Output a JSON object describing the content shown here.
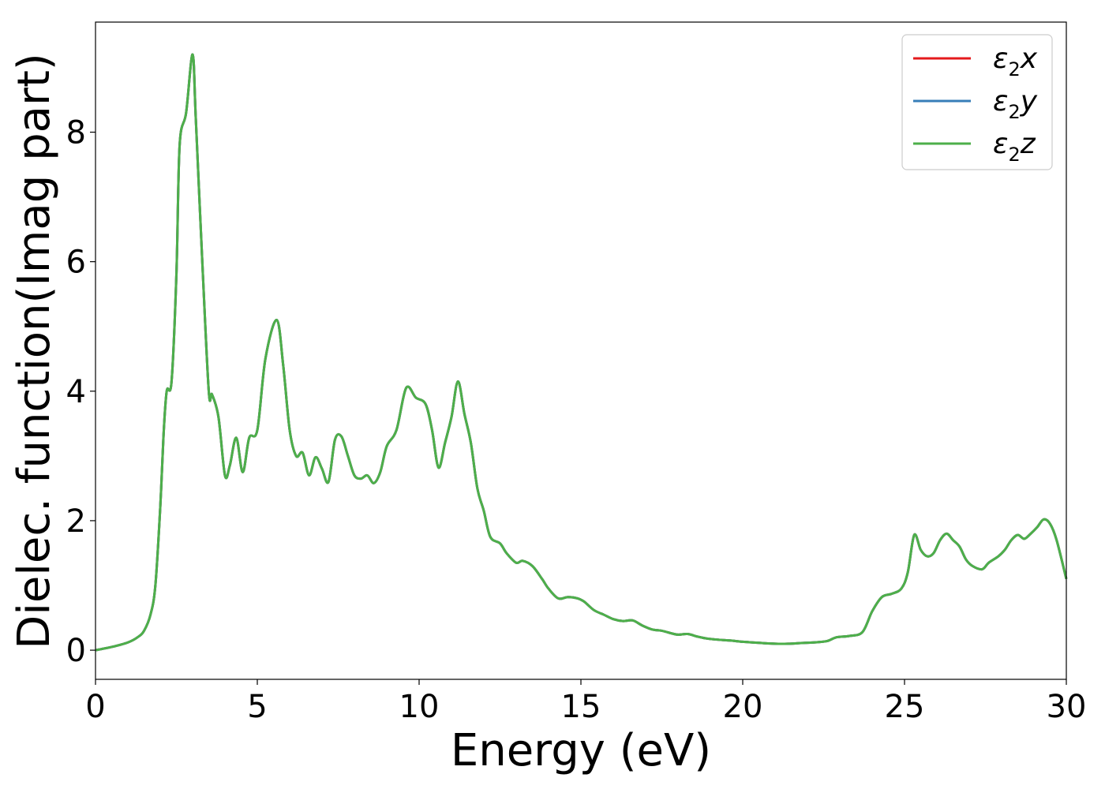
{
  "chart_data": {
    "type": "line",
    "xlabel": "Energy (eV)",
    "ylabel": "Dielec. function(Imag part)",
    "xlim": [
      0,
      30
    ],
    "ylim": [
      -0.45,
      9.7
    ],
    "xticks": [
      0,
      5,
      10,
      15,
      20,
      25,
      30
    ],
    "yticks": [
      0,
      2,
      4,
      6,
      8
    ],
    "grid": false,
    "legend_position": "top-right",
    "series": [
      {
        "name_symbol": "ε",
        "name_sub": "2",
        "name_axis": "x",
        "color": "#e41a1c",
        "ref": "shared"
      },
      {
        "name_symbol": "ε",
        "name_sub": "2",
        "name_axis": "y",
        "color": "#377eb8",
        "ref": "shared"
      },
      {
        "name_symbol": "ε",
        "name_sub": "2",
        "name_axis": "z",
        "color": "#4daf4a",
        "ref": "shared"
      }
    ],
    "x": [
      0,
      0.5,
      1.0,
      1.3,
      1.5,
      1.7,
      1.85,
      2.0,
      2.1,
      2.2,
      2.35,
      2.5,
      2.6,
      2.8,
      3.0,
      3.1,
      3.3,
      3.5,
      3.6,
      3.8,
      4.0,
      4.15,
      4.35,
      4.55,
      4.75,
      5.0,
      5.25,
      5.6,
      5.8,
      6.0,
      6.2,
      6.4,
      6.6,
      6.8,
      7.0,
      7.2,
      7.4,
      7.6,
      7.8,
      8.0,
      8.2,
      8.4,
      8.6,
      8.8,
      9.0,
      9.3,
      9.6,
      9.9,
      10.2,
      10.4,
      10.6,
      10.8,
      11.0,
      11.2,
      11.4,
      11.6,
      11.8,
      12.0,
      12.2,
      12.5,
      12.7,
      13.0,
      13.2,
      13.5,
      13.8,
      14.0,
      14.3,
      14.6,
      14.9,
      15.1,
      15.4,
      15.7,
      16.0,
      16.3,
      16.6,
      16.9,
      17.2,
      17.5,
      17.8,
      18.0,
      18.3,
      18.6,
      18.9,
      19.3,
      19.6,
      20.0,
      20.3,
      20.6,
      21.0,
      21.4,
      21.8,
      22.2,
      22.6,
      22.9,
      23.3,
      23.7,
      24.0,
      24.3,
      24.6,
      24.9,
      25.1,
      25.3,
      25.5,
      25.7,
      25.9,
      26.1,
      26.3,
      26.5,
      26.7,
      26.9,
      27.1,
      27.4,
      27.6,
      27.9,
      28.1,
      28.3,
      28.5,
      28.7,
      28.9,
      29.1,
      29.3,
      29.5,
      29.7,
      30.0
    ],
    "y": [
      0.0,
      0.05,
      0.12,
      0.2,
      0.3,
      0.55,
      1.0,
      2.2,
      3.3,
      4.0,
      4.15,
      5.8,
      7.8,
      8.3,
      9.2,
      8.2,
      6.0,
      4.0,
      3.95,
      3.6,
      2.7,
      2.85,
      3.28,
      2.75,
      3.28,
      3.4,
      4.5,
      5.1,
      4.4,
      3.4,
      3.0,
      3.05,
      2.7,
      2.98,
      2.8,
      2.6,
      3.25,
      3.3,
      3.0,
      2.7,
      2.65,
      2.7,
      2.58,
      2.75,
      3.15,
      3.4,
      4.05,
      3.9,
      3.8,
      3.4,
      2.82,
      3.2,
      3.6,
      4.15,
      3.65,
      3.2,
      2.5,
      2.15,
      1.75,
      1.65,
      1.5,
      1.35,
      1.38,
      1.3,
      1.1,
      0.95,
      0.8,
      0.82,
      0.8,
      0.75,
      0.62,
      0.55,
      0.48,
      0.45,
      0.46,
      0.38,
      0.32,
      0.3,
      0.26,
      0.24,
      0.25,
      0.21,
      0.18,
      0.16,
      0.15,
      0.13,
      0.12,
      0.11,
      0.1,
      0.1,
      0.11,
      0.12,
      0.14,
      0.2,
      0.22,
      0.28,
      0.6,
      0.82,
      0.87,
      0.95,
      1.2,
      1.78,
      1.55,
      1.45,
      1.5,
      1.7,
      1.8,
      1.7,
      1.6,
      1.4,
      1.3,
      1.25,
      1.35,
      1.45,
      1.55,
      1.7,
      1.78,
      1.72,
      1.8,
      1.9,
      2.02,
      1.95,
      1.7,
      1.1
    ]
  }
}
